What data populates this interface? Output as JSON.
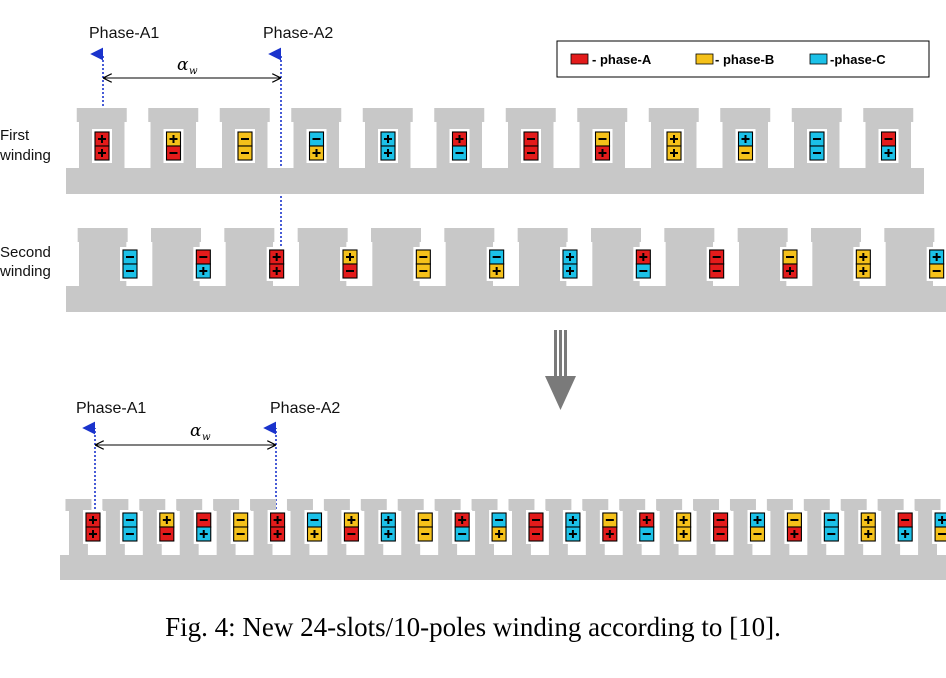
{
  "colors": {
    "A": "#e31b1b",
    "B": "#f5c11a",
    "C": "#1cc1e8",
    "core": "#c8c8c8",
    "marker": "#1a33cc",
    "arrow": "#7a7a7a"
  },
  "legend": [
    {
      "phase": "A",
      "label": "- phase-A"
    },
    {
      "phase": "B",
      "label": "- phase-B"
    },
    {
      "phase": "C",
      "label": "-phase-C"
    }
  ],
  "top": {
    "marker1": "Phase-A1",
    "marker2": "Phase-A2",
    "alpha": "α",
    "alpha_sub": "w"
  },
  "bottom": {
    "marker1": "Phase-A1",
    "marker2": "Phase-A2",
    "alpha": "α",
    "alpha_sub": "w"
  },
  "first_winding": {
    "label_line1": "First",
    "label_line2": "winding",
    "coils": [
      [
        "A",
        "+",
        "A",
        "+"
      ],
      [
        "B",
        "+",
        "A",
        "-"
      ],
      [
        "B",
        "-",
        "B",
        "-"
      ],
      [
        "C",
        "-",
        "B",
        "+"
      ],
      [
        "C",
        "+",
        "C",
        "+"
      ],
      [
        "A",
        "+",
        "C",
        "-"
      ],
      [
        "A",
        "-",
        "A",
        "-"
      ],
      [
        "B",
        "-",
        "A",
        "+"
      ],
      [
        "B",
        "+",
        "B",
        "+"
      ],
      [
        "C",
        "+",
        "B",
        "-"
      ],
      [
        "C",
        "-",
        "C",
        "-"
      ],
      [
        "A",
        "-",
        "C",
        "+"
      ]
    ]
  },
  "second_winding": {
    "label_line1": "Second",
    "label_line2": "winding",
    "coils": [
      [
        "C",
        "-",
        "C",
        "-"
      ],
      [
        "A",
        "-",
        "C",
        "+"
      ],
      [
        "A",
        "+",
        "A",
        "+"
      ],
      [
        "B",
        "+",
        "A",
        "-"
      ],
      [
        "B",
        "-",
        "B",
        "-"
      ],
      [
        "C",
        "-",
        "B",
        "+"
      ],
      [
        "C",
        "+",
        "C",
        "+"
      ],
      [
        "A",
        "+",
        "C",
        "-"
      ],
      [
        "A",
        "-",
        "A",
        "-"
      ],
      [
        "B",
        "-",
        "A",
        "+"
      ],
      [
        "B",
        "+",
        "B",
        "+"
      ],
      [
        "C",
        "+",
        "B",
        "-"
      ]
    ]
  },
  "combined_winding": {
    "coils": [
      [
        "A",
        "+",
        "A",
        "+"
      ],
      [
        "C",
        "-",
        "C",
        "-"
      ],
      [
        "B",
        "+",
        "A",
        "-"
      ],
      [
        "A",
        "-",
        "C",
        "+"
      ],
      [
        "B",
        "-",
        "B",
        "-"
      ],
      [
        "A",
        "+",
        "A",
        "+"
      ],
      [
        "C",
        "-",
        "B",
        "+"
      ],
      [
        "B",
        "+",
        "A",
        "-"
      ],
      [
        "C",
        "+",
        "C",
        "+"
      ],
      [
        "B",
        "-",
        "B",
        "-"
      ],
      [
        "A",
        "+",
        "C",
        "-"
      ],
      [
        "C",
        "-",
        "B",
        "+"
      ],
      [
        "A",
        "-",
        "A",
        "-"
      ],
      [
        "C",
        "+",
        "C",
        "+"
      ],
      [
        "B",
        "-",
        "A",
        "+"
      ],
      [
        "A",
        "+",
        "C",
        "-"
      ],
      [
        "B",
        "+",
        "B",
        "+"
      ],
      [
        "A",
        "-",
        "A",
        "-"
      ],
      [
        "C",
        "+",
        "B",
        "-"
      ],
      [
        "B",
        "-",
        "A",
        "+"
      ],
      [
        "C",
        "-",
        "C",
        "-"
      ],
      [
        "B",
        "+",
        "B",
        "+"
      ],
      [
        "A",
        "-",
        "C",
        "+"
      ],
      [
        "C",
        "+",
        "B",
        "-"
      ]
    ]
  },
  "caption": "Fig. 4:  New 24-slots/10-poles winding according to [10]."
}
